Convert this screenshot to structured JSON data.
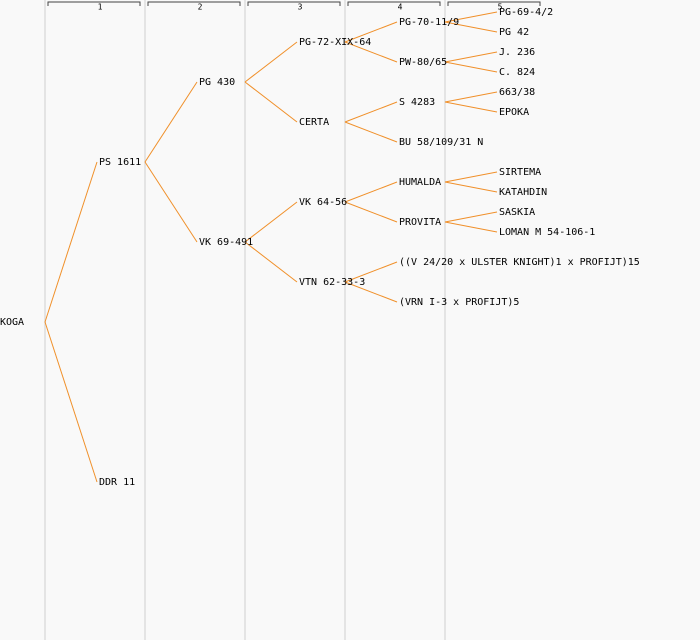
{
  "generations": [
    "1",
    "2",
    "3",
    "4",
    "5"
  ],
  "tree": {
    "label": "KOGA",
    "children": [
      {
        "label": "PS 1611",
        "children": [
          {
            "label": "PG 430",
            "children": [
              {
                "label": "PG-72-XIX-64",
                "children": [
                  {
                    "label": "PG-70-11/9",
                    "children": [
                      {
                        "label": "PG-69-4/2"
                      },
                      {
                        "label": "PG 42"
                      }
                    ]
                  },
                  {
                    "label": "PW-80/65",
                    "children": [
                      {
                        "label": "J. 236"
                      },
                      {
                        "label": "C. 824"
                      }
                    ]
                  }
                ]
              },
              {
                "label": "CERTA",
                "children": [
                  {
                    "label": "S 4283",
                    "children": [
                      {
                        "label": "663/38"
                      },
                      {
                        "label": "EPOKA"
                      }
                    ]
                  },
                  {
                    "label": "BU 58/109/31 N"
                  }
                ]
              }
            ]
          },
          {
            "label": "VK 69-491",
            "children": [
              {
                "label": "VK 64-56",
                "children": [
                  {
                    "label": "HUMALDA",
                    "children": [
                      {
                        "label": "SIRTEMA"
                      },
                      {
                        "label": "KATAHDIN"
                      }
                    ]
                  },
                  {
                    "label": "PROVITA",
                    "children": [
                      {
                        "label": "SASKIA"
                      },
                      {
                        "label": "LOMAN M 54-106-1"
                      }
                    ]
                  }
                ]
              },
              {
                "label": "VTN 62-33-3",
                "children": [
                  {
                    "label": "((V 24/20 x ULSTER KNIGHT)1 x PROFIJT)15"
                  },
                  {
                    "label": "(VRN I-3 x PROFIJT)5"
                  }
                ]
              }
            ]
          }
        ]
      },
      {
        "label": "DDR 11"
      }
    ]
  }
}
